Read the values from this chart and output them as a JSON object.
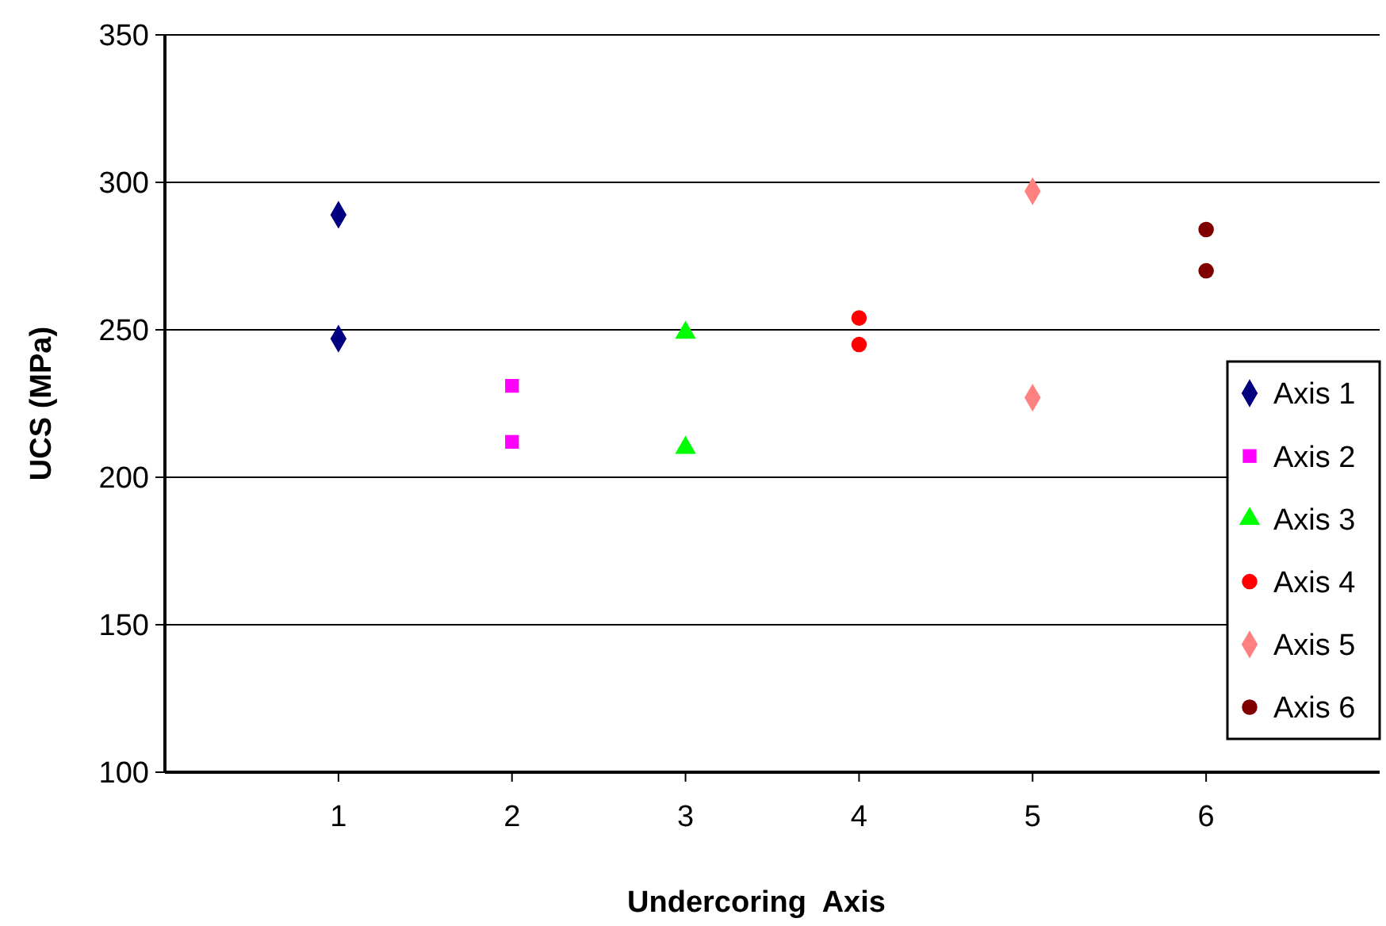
{
  "chart_data": {
    "type": "scatter",
    "xlabel": "Undercoring  Axis",
    "ylabel": "UCS (MPa)",
    "xlim": [
      0,
      7
    ],
    "xticks": [
      1,
      2,
      3,
      4,
      5,
      6
    ],
    "ylim": [
      100,
      350
    ],
    "yticks": [
      100,
      150,
      200,
      250,
      300,
      350
    ],
    "grid": "y",
    "legend": "right",
    "series": [
      {
        "name": "Axis 1",
        "color": "#000080",
        "marker": "diamond",
        "x": [
          1,
          1
        ],
        "values": [
          289,
          247
        ]
      },
      {
        "name": "Axis 2",
        "color": "#ff00ff",
        "marker": "square",
        "x": [
          2,
          2
        ],
        "values": [
          231,
          212
        ]
      },
      {
        "name": "Axis 3",
        "color": "#00ff00",
        "marker": "triangle",
        "x": [
          3,
          3
        ],
        "values": [
          249,
          210
        ]
      },
      {
        "name": "Axis 4",
        "color": "#ff0000",
        "marker": "circle",
        "x": [
          4,
          4
        ],
        "values": [
          254,
          245
        ]
      },
      {
        "name": "Axis 5",
        "color": "#ff8080",
        "marker": "diamond",
        "x": [
          5,
          5
        ],
        "values": [
          297,
          227
        ]
      },
      {
        "name": "Axis 6",
        "color": "#800000",
        "marker": "circle",
        "x": [
          6,
          6
        ],
        "values": [
          284,
          270
        ]
      }
    ]
  }
}
